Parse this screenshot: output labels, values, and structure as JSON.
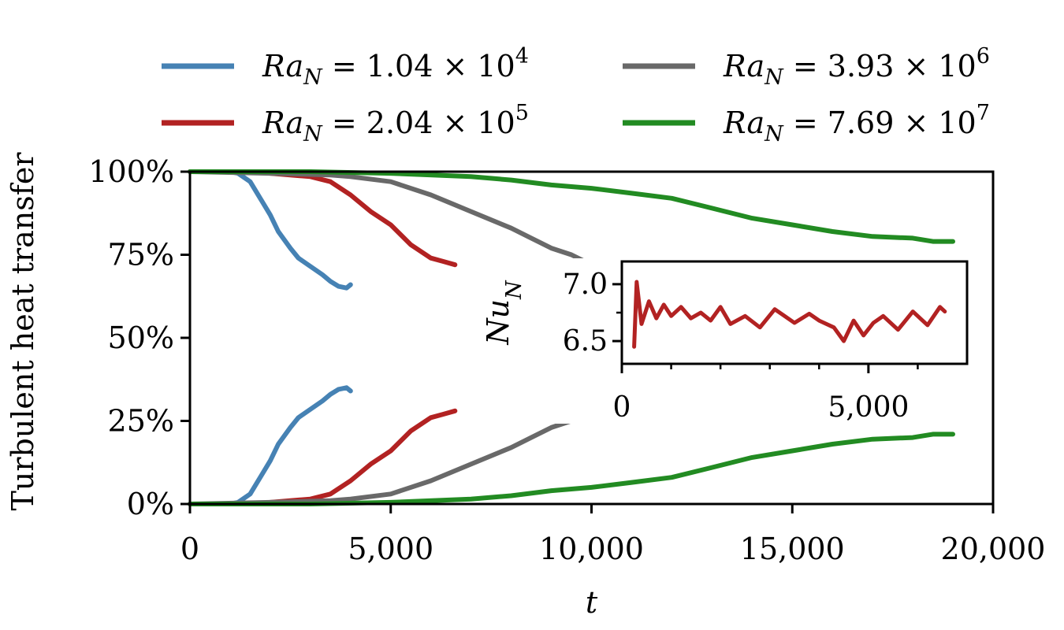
{
  "chart_data": [
    {
      "type": "line",
      "title": "",
      "xlabel": "t",
      "ylabel": "Turbulent heat transfer",
      "xlim": [
        0,
        20000
      ],
      "ylim": [
        0,
        100
      ],
      "x_ticks": [
        0,
        5000,
        10000,
        15000,
        20000
      ],
      "x_tick_labels": [
        "0",
        "5,000",
        "10,000",
        "15,000",
        "20,000"
      ],
      "y_ticks": [
        0,
        25,
        50,
        75,
        100
      ],
      "y_tick_labels": [
        "0%",
        "25%",
        "50%",
        "75%",
        "100%"
      ],
      "grid": false,
      "legend_position": "top, outside, 2 columns",
      "series": [
        {
          "name": "Ra_N = 1.04 × 10^4",
          "label": {
            "base": "Ra",
            "sub": "N",
            "eq": " = 1.04 × 10",
            "sup": "4"
          },
          "color": "#4682B4",
          "upper": {
            "x": [
              0,
              1000,
              1200,
              1500,
              1800,
              2000,
              2200,
              2500,
              2700,
              3000,
              3300,
              3500,
              3700,
              3900,
              4000
            ],
            "y": [
              100,
              100,
              99.5,
              97,
              91,
              87,
              82,
              77,
              74,
              71.5,
              69,
              67,
              65.5,
              65,
              66
            ]
          },
          "lower": {
            "x": [
              0,
              1000,
              1200,
              1500,
              1800,
              2000,
              2200,
              2500,
              2700,
              3000,
              3300,
              3500,
              3700,
              3900,
              4000
            ],
            "y": [
              0,
              0,
              0.5,
              3,
              9,
              13,
              18,
              23,
              26,
              28.5,
              31,
              33,
              34.5,
              35,
              34
            ]
          }
        },
        {
          "name": "Ra_N = 2.04 × 10^5",
          "label": {
            "base": "Ra",
            "sub": "N",
            "eq": " = 2.04 × 10",
            "sup": "5"
          },
          "color": "#B22222",
          "upper": {
            "x": [
              0,
              1500,
              2500,
              3000,
              3500,
              4000,
              4500,
              5000,
              5500,
              6000,
              6300,
              6600
            ],
            "y": [
              100,
              100,
              99,
              98.5,
              97,
              93,
              88,
              84,
              78,
              74,
              73,
              72
            ]
          },
          "lower": {
            "x": [
              0,
              1500,
              2500,
              3000,
              3500,
              4000,
              4500,
              5000,
              5500,
              6000,
              6300,
              6600
            ],
            "y": [
              0,
              0,
              1,
              1.5,
              3,
              7,
              12,
              16,
              22,
              26,
              27,
              28
            ]
          }
        },
        {
          "name": "Ra_N = 3.93 × 10^6",
          "label": {
            "base": "Ra",
            "sub": "N",
            "eq": " = 3.93 × 10",
            "sup": "6"
          },
          "color": "#696969",
          "upper": {
            "x": [
              0,
              2000,
              3500,
              4000,
              5000,
              6000,
              7000,
              8000,
              8500,
              9000,
              9500,
              10000
            ],
            "y": [
              100,
              99.5,
              99,
              98.5,
              97,
              93,
              88,
              83,
              80,
              77,
              75,
              72
            ]
          },
          "lower": {
            "x": [
              0,
              2000,
              3500,
              4000,
              5000,
              6000,
              7000,
              8000,
              8500,
              9000,
              9500,
              10000
            ],
            "y": [
              0,
              0.5,
              1,
              1.5,
              3,
              7,
              12,
              17,
              20,
              23,
              25,
              28
            ]
          }
        },
        {
          "name": "Ra_N = 7.69 × 10^7",
          "label": {
            "base": "Ra",
            "sub": "N",
            "eq": " = 7.69 × 10",
            "sup": "7"
          },
          "color": "#228B22",
          "upper": {
            "x": [
              0,
              3000,
              5000,
              7000,
              8000,
              9000,
              10000,
              11000,
              12000,
              13000,
              14000,
              15000,
              16000,
              17000,
              18000,
              18500,
              19000
            ],
            "y": [
              100,
              100,
              99.5,
              98.5,
              97.5,
              96,
              95,
              93.5,
              92,
              89,
              86,
              84,
              82,
              80.5,
              80,
              79,
              79
            ]
          },
          "lower": {
            "x": [
              0,
              3000,
              5000,
              7000,
              8000,
              9000,
              10000,
              11000,
              12000,
              13000,
              14000,
              15000,
              16000,
              17000,
              18000,
              18500,
              19000
            ],
            "y": [
              0,
              0,
              0.5,
              1.5,
              2.5,
              4,
              5,
              6.5,
              8,
              11,
              14,
              16,
              18,
              19.5,
              20,
              21,
              21
            ]
          }
        }
      ]
    },
    {
      "type": "line",
      "inset": true,
      "xlabel": "",
      "ylabel": "Nu_N",
      "ylabel_parts": {
        "base": "Nu",
        "sub": "N"
      },
      "xlim": [
        0,
        7000
      ],
      "ylim": [
        6.3,
        7.2
      ],
      "x_ticks": [
        0,
        5000
      ],
      "x_tick_labels": [
        "0",
        "5,000"
      ],
      "x_minor_ticks": [
        1000,
        2000,
        3000,
        4000,
        6000
      ],
      "y_ticks": [
        6.5,
        7.0
      ],
      "y_tick_labels": [
        "6.5",
        "7.0"
      ],
      "y_minor_ticks": [
        6.75
      ],
      "series": [
        {
          "color": "#B22222",
          "x": [
            250,
            300,
            400,
            550,
            700,
            850,
            1000,
            1200,
            1400,
            1600,
            1800,
            2000,
            2200,
            2500,
            2800,
            3100,
            3300,
            3500,
            3800,
            4000,
            4300,
            4500,
            4700,
            4900,
            5100,
            5300,
            5600,
            5900,
            6200,
            6450,
            6550
          ],
          "y": [
            6.45,
            7.02,
            6.65,
            6.85,
            6.7,
            6.82,
            6.72,
            6.8,
            6.7,
            6.75,
            6.68,
            6.8,
            6.65,
            6.72,
            6.62,
            6.78,
            6.72,
            6.66,
            6.74,
            6.68,
            6.62,
            6.5,
            6.68,
            6.55,
            6.66,
            6.72,
            6.6,
            6.76,
            6.64,
            6.8,
            6.76
          ]
        }
      ]
    }
  ]
}
